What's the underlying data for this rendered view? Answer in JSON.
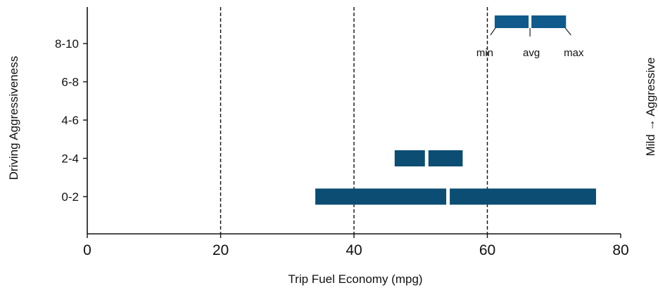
{
  "chart_data": {
    "type": "bar",
    "subtype": "range (min-avg-max)",
    "xlabel": "Trip Fuel Economy (mpg)",
    "ylabel": "Driving  Aggressiveness",
    "right_label": "Mild → Aggressive",
    "xlim": [
      0,
      80
    ],
    "x_ticks": [
      "0",
      "20",
      "40",
      "60",
      "80"
    ],
    "categories": [
      "0-2",
      "2-4",
      "4-6",
      "6-8",
      "8-10"
    ],
    "dashed_vertical_gridlines_at": [
      20,
      40,
      60
    ],
    "series": [
      {
        "category": "0-2",
        "min": 34.2,
        "avg": 54.1,
        "max": 76.3
      },
      {
        "category": "2-4",
        "min": 46.1,
        "avg": 50.9,
        "max": 56.3
      }
    ],
    "legend": {
      "min": 61.1,
      "avg": 66.4,
      "max": 71.8,
      "labels": [
        "min",
        "avg",
        "max"
      ],
      "position": "top-right"
    },
    "colors": {
      "bar": "#0b4d73",
      "legend_bar": "#0f5a8a",
      "axis": "#111111"
    }
  }
}
